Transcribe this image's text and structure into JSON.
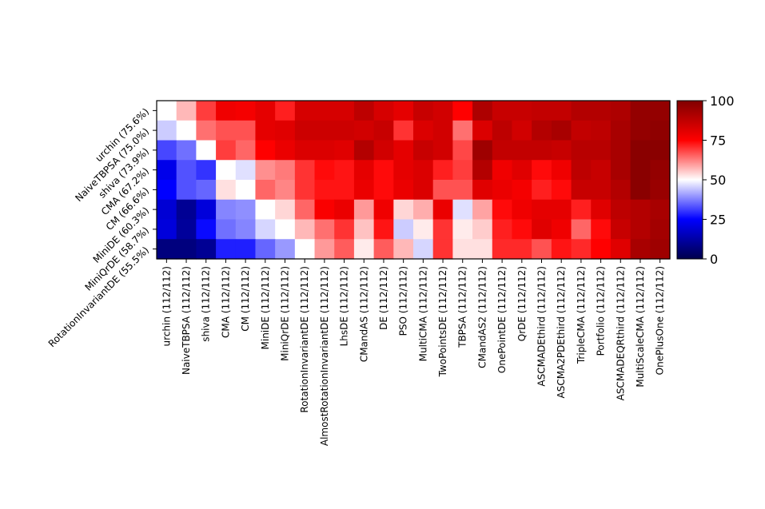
{
  "chart_data": {
    "type": "heatmap",
    "row_labels": [
      "urchin (75.6%)",
      "NaiveTBPSA (75.0%)",
      "shiva (73.9%)",
      "CMA (67.2%)",
      "CM (66.6%)",
      "MiniDE (60.3%)",
      "MiniQrDE (58.7%)",
      "RotationInvariantDE (55.5%)"
    ],
    "col_labels": [
      "urchin (112/112)",
      "NaiveTBPSA (112/112)",
      "shiva (112/112)",
      "CMA (112/112)",
      "CM (112/112)",
      "MiniDE (112/112)",
      "MiniQrDE (112/112)",
      "RotationInvariantDE (112/112)",
      "AlmostRotationInvariantDE (112/112)",
      "LhsDE (112/112)",
      "CMandAS (112/112)",
      "DE (112/112)",
      "PSO (112/112)",
      "MultiCMA (112/112)",
      "TwoPointsDE (112/112)",
      "TBPSA (112/112)",
      "CMandAS2 (112/112)",
      "OnePointDE (112/112)",
      "QrDE (112/112)",
      "ASCMADEthird (112/112)",
      "ASCMA2PDEthird (112/112)",
      "TripleCMA (112/112)",
      "Portfolio (112/112)",
      "ASCMADEQRthird (112/112)",
      "MultiScaleCMA (112/112)",
      "OnePlusOne (112/112)"
    ],
    "values": [
      [
        50,
        57,
        69,
        78,
        77,
        80,
        72,
        83,
        83,
        83,
        88,
        83,
        80,
        86,
        84,
        75,
        91,
        86,
        86,
        87,
        87,
        90,
        90,
        91,
        96,
        96
      ],
      [
        45,
        50,
        64,
        67,
        67,
        80,
        81,
        85,
        85,
        85,
        84,
        86,
        70,
        82,
        84,
        64,
        82,
        88,
        84,
        90,
        92,
        87,
        88,
        92,
        96,
        97
      ],
      [
        32,
        36,
        50,
        69,
        65,
        75,
        79,
        82,
        82,
        81,
        90,
        84,
        80,
        86,
        84,
        68,
        94,
        87,
        87,
        87,
        86,
        89,
        89,
        92,
        98,
        98
      ],
      [
        22,
        33,
        30,
        50,
        47,
        61,
        63,
        70,
        74,
        73,
        80,
        74,
        80,
        82,
        72,
        69,
        90,
        78,
        81,
        74,
        78,
        88,
        86,
        92,
        98,
        96
      ],
      [
        25,
        33,
        35,
        53,
        50,
        65,
        62,
        70,
        73,
        73,
        79,
        74,
        79,
        82,
        67,
        67,
        81,
        79,
        77,
        72,
        74,
        86,
        86,
        90,
        98,
        95
      ],
      [
        19,
        10,
        20,
        38,
        39,
        50,
        54,
        65,
        76,
        79,
        60,
        78,
        54,
        58,
        79,
        47,
        59,
        74,
        78,
        80,
        80,
        72,
        81,
        88,
        90,
        92
      ],
      [
        20,
        11,
        26,
        36,
        38,
        46,
        50,
        57,
        64,
        70,
        56,
        73,
        45,
        52,
        70,
        52,
        55,
        72,
        74,
        81,
        78,
        65,
        74,
        86,
        90,
        93
      ],
      [
        7,
        7,
        10,
        28,
        28,
        35,
        40,
        50,
        60,
        66,
        52,
        66,
        57,
        46,
        70,
        53,
        53,
        71,
        71,
        67,
        73,
        71,
        75,
        81,
        92,
        94
      ]
    ],
    "colormap": "seismic",
    "vmin": 0,
    "vmax": 100,
    "colorbar_ticks": [
      0,
      25,
      50,
      75,
      100
    ]
  }
}
